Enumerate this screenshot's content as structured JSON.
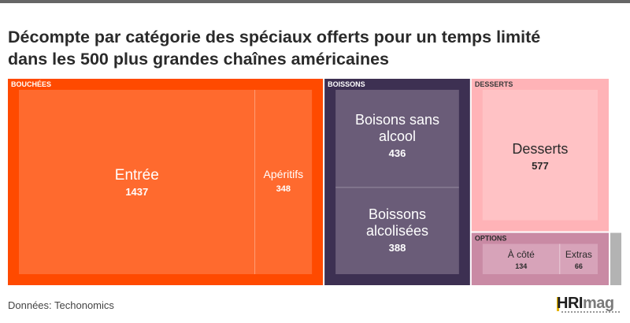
{
  "header": {
    "title_line1": "Décompte par catégorie des spéciaux offerts pour un temps limité",
    "title_line2": "dans les 500 plus grandes chaînes américaines"
  },
  "footer": {
    "source": "Données: Techonomics",
    "logo_hr": "HRI",
    "logo_mag": "mag"
  },
  "colors": {
    "bouchees": "#ff4a00",
    "bouchees_inner": "#ff6a2e",
    "boissons": "#3d3052",
    "boissons_inner": "#6a5c78",
    "desserts": "#ffb3b7",
    "desserts_inner": "#ffc2c5",
    "options": "#c98aa4",
    "options_inner": "#d7a3b9",
    "extra_sliver": "#b3b3b3"
  },
  "chart_data": {
    "type": "treemap",
    "title": "Décompte par catégorie des spéciaux offerts pour un temps limité dans les 500 plus grandes chaînes américaines",
    "groups": [
      {
        "name": "BOUCHÉES",
        "items": [
          {
            "name": "Entrée",
            "value": 1437
          },
          {
            "name": "Apéritifs",
            "value": 348
          }
        ]
      },
      {
        "name": "BOISSONS",
        "items": [
          {
            "name": "Boisons sans alcool",
            "value": 436
          },
          {
            "name": "Boissons alcolisées",
            "value": 388
          }
        ]
      },
      {
        "name": "DESSERTS",
        "items": [
          {
            "name": "Desserts",
            "value": 577
          }
        ]
      },
      {
        "name": "OPTIONS",
        "items": [
          {
            "name": "À côté",
            "value": 134
          },
          {
            "name": "Extras",
            "value": 66
          }
        ]
      }
    ]
  }
}
